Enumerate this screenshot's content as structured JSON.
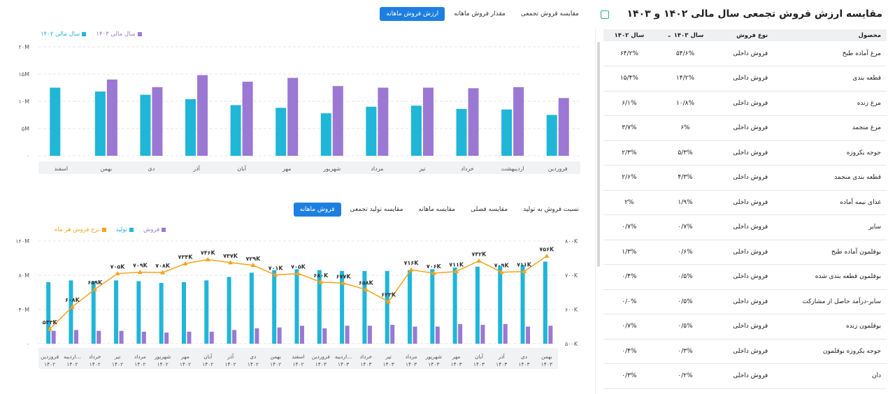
{
  "top_tabs": [
    "ارزش فروش ماهانه",
    "مقدار فروش ماهانه",
    "مقایسه فروش تجمعی"
  ],
  "top_legend": [
    "سال مالی ۱۴۰۳",
    "سال مالی ۱۴۰۲"
  ],
  "bottom_tabs": [
    "فروش ماهانه",
    "مقایسه تولید تجمعی",
    "مقایسه ماهانه",
    "مقایسه فصلی",
    "نسبت فروش به تولید"
  ],
  "bottom_legend": [
    "فروش",
    "تولید",
    "نرخ فروش هر ماه"
  ],
  "colors": {
    "accent": "#1d7fe0",
    "cyan": "#1fb6d8",
    "purple": "#9b78d3",
    "orange": "#f5a31a"
  },
  "table": {
    "title": "مقایسه ارزش فروش تجمعی سال مالی ۱۴۰۲ و ۱۴۰۳",
    "headers": [
      "محصول",
      "نوع فروش",
      "سال ۱۴۰۳",
      "سال ۱۴۰۲"
    ],
    "rows": [
      [
        "مرغ آماده طبخ",
        "فروش داخلی",
        "۵۴/۶%",
        "۶۴/۲%"
      ],
      [
        "قطعه بندی",
        "فروش داخلی",
        "۱۴/۲%",
        "۱۵/۴%"
      ],
      [
        "مرغ زنده",
        "فروش داخلی",
        "۱۰/۸%",
        "۶/۱%"
      ],
      [
        "مرغ منجمد",
        "فروش داخلی",
        "۶%",
        "۳/۷%"
      ],
      [
        "جوجه یکروزه",
        "فروش داخلی",
        "۵/۳%",
        "۲/۳%"
      ],
      [
        "قطعه بندی منجمد",
        "فروش داخلی",
        "۴/۳%",
        "۲/۶%"
      ],
      [
        "غذای نیمه آماده",
        "فروش داخلی",
        "۱/۹%",
        "۲%"
      ],
      [
        "سایر",
        "فروش داخلی",
        "۰/۷%",
        "۰/۷%"
      ],
      [
        "بوقلمون آماده طبخ",
        "فروش داخلی",
        "۰/۶%",
        "۱/۳%"
      ],
      [
        "بوقلمون قطعه بندی شده",
        "فروش داخلی",
        "۰/۵%",
        "۰/۴%"
      ],
      [
        "سایر-درآمد حاصل از مشارکت",
        "فروش داخلی",
        "۰/۵%",
        "۰/۰%"
      ],
      [
        "بوقلمون زنده",
        "فروش داخلی",
        "۰/۵%",
        "۰/۷%"
      ],
      [
        "جوجه یکروزه بوقلمون",
        "فروش داخلی",
        "۰/۳%",
        "۰/۴%"
      ],
      [
        "دان",
        "فروش داخلی",
        "۰/۲%",
        "۰/۳%"
      ]
    ]
  },
  "chart_data": [
    {
      "type": "bar",
      "categories": [
        "فروردین",
        "اردیبهشت",
        "خرداد",
        "تیر",
        "مرداد",
        "شهریور",
        "مهر",
        "آبان",
        "آذر",
        "دی",
        "بهمن",
        "اسفند"
      ],
      "series": [
        {
          "name": "سال مالی ۱۴۰۲",
          "values": [
            7.5,
            8.5,
            8.6,
            9.2,
            9.0,
            7.8,
            8.8,
            9.3,
            10.4,
            11.2,
            11.8,
            12.5
          ]
        },
        {
          "name": "سال مالی ۱۴۰۳",
          "values": [
            10.6,
            12.6,
            12.4,
            12.5,
            12.5,
            12.8,
            14.3,
            13.6,
            14.8,
            12.6,
            14.0,
            null
          ]
        }
      ],
      "yticks": [
        "۰",
        "۵M",
        "۱۰M",
        "۱۵M",
        "۲۰M"
      ],
      "ylim": [
        0,
        20
      ],
      "grid": true
    },
    {
      "type": "bar+line",
      "categories": [
        "فروردین ۱۴۰۲",
        "اردیبه... ۱۴۰۲",
        "خرداد ۱۴۰۲",
        "تیر ۱۴۰۲",
        "مرداد ۱۴۰۲",
        "شهریور ۱۴۰۲",
        "مهر ۱۴۰۲",
        "آبان ۱۴۰۲",
        "آذر ۱۴۰۲",
        "دی ۱۴۰۲",
        "بهمن ۱۴۰۲",
        "اسفند ۱۴۰۲",
        "فروردین ۱۴۰۳",
        "اردیبه... ۱۴۰۳",
        "خرداد ۱۴۰۳",
        "تیر ۱۴۰۳",
        "مرداد ۱۴۰۳",
        "شهریور ۱۴۰۳",
        "مهر ۱۴۰۳",
        "آبان ۱۴۰۳",
        "آذر ۱۴۰۳",
        "دی ۱۴۰۳",
        "بهمن ۱۴۰۳"
      ],
      "series": [
        {
          "name": "تولید",
          "axis": "left",
          "values": [
            72,
            74,
            73,
            74,
            73,
            71,
            72,
            74,
            78,
            83,
            86,
            87,
            86,
            85,
            85,
            85,
            86,
            87,
            89,
            90,
            91,
            92,
            96
          ]
        },
        {
          "name": "فروش",
          "axis": "left",
          "values": [
            15,
            16,
            15,
            15,
            14,
            13,
            14,
            14,
            16,
            18,
            19,
            21,
            18,
            21,
            21,
            22,
            20,
            20,
            23,
            22,
            23,
            20,
            21
          ]
        },
        {
          "name": "نرخ فروش هر ماه",
          "axis": "right",
          "values": [
            543,
            608,
            659,
            705,
            709,
            708,
            734,
            746,
            737,
            729,
            701,
            705,
            680,
            677,
            658,
            623,
            716,
            706,
            711,
            742,
            709,
            711,
            756
          ],
          "labels": [
            "۵۴۳K",
            "۶۰۸K",
            "۶۵۹K",
            "۷۰۵K",
            "۷۰۹K",
            "۷۰۸K",
            "۷۳۴K",
            "۷۴۶K",
            "۷۳۷K",
            "۷۲۹K",
            "۷۰۱K",
            "۷۰۵K",
            "۶۸۰K",
            "۶۷۷K",
            "۶۵۸K",
            "۶۲۳K",
            "۷۱۶K",
            "۷۰۶K",
            "۷۱۱K",
            "۷۴۲K",
            "۷۰۹K",
            "۷۱۱K",
            "۷۵۶K"
          ]
        }
      ],
      "yticks_left": [
        "۰",
        "۴۰M",
        "۸۰M",
        "۱۲۰M"
      ],
      "ylim_left": [
        0,
        120
      ],
      "yticks_right": [
        "۵۰۰K",
        "۶۰۰K",
        "۷۰۰K",
        "۸۰۰K"
      ],
      "ylim_right": [
        500,
        800
      ]
    }
  ]
}
